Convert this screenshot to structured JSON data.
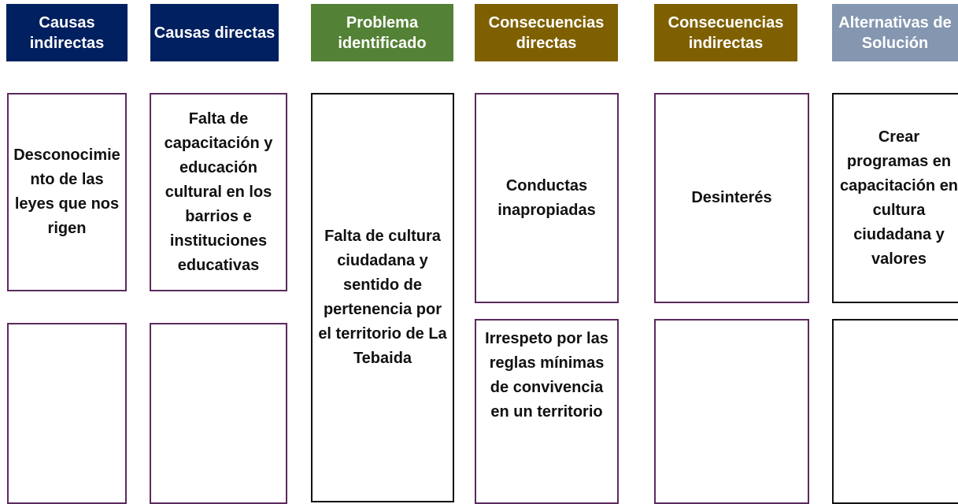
{
  "columns": [
    {
      "header": "Causas indirectas",
      "boxes": [
        "Desconocimiento de las leyes que nos rigen"
      ]
    },
    {
      "header": "Causas directas",
      "boxes": [
        "Falta de capacitación y educación cultural en los barrios e instituciones educativas"
      ]
    },
    {
      "header": "Problema identificado",
      "boxes": [
        "Falta de cultura ciudadana y sentido de pertenencia por el territorio de La Tebaida"
      ]
    },
    {
      "header": "Consecuencias directas",
      "boxes": [
        "Conductas inapropiadas",
        "Irrespeto por las reglas mínimas de convivencia en un territorio"
      ]
    },
    {
      "header": "Consecuencias indirectas",
      "boxes": [
        "Desinterés"
      ]
    },
    {
      "header": "Alternativas de Solución",
      "boxes": [
        "Crear programas en capacitación en cultura ciudadana y valores"
      ]
    }
  ]
}
